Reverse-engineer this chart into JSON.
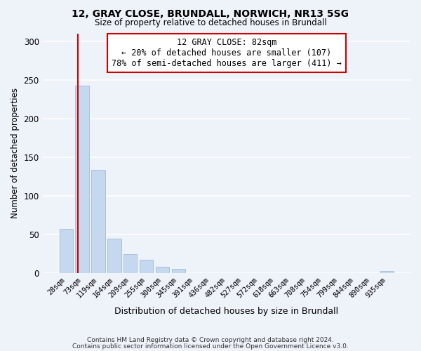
{
  "title": "12, GRAY CLOSE, BRUNDALL, NORWICH, NR13 5SG",
  "subtitle": "Size of property relative to detached houses in Brundall",
  "xlabel": "Distribution of detached houses by size in Brundall",
  "ylabel": "Number of detached properties",
  "bar_labels": [
    "28sqm",
    "73sqm",
    "119sqm",
    "164sqm",
    "209sqm",
    "255sqm",
    "300sqm",
    "345sqm",
    "391sqm",
    "436sqm",
    "482sqm",
    "527sqm",
    "572sqm",
    "618sqm",
    "663sqm",
    "708sqm",
    "754sqm",
    "799sqm",
    "844sqm",
    "890sqm",
    "935sqm"
  ],
  "bar_values": [
    57,
    242,
    133,
    44,
    24,
    17,
    8,
    5,
    0,
    0,
    0,
    0,
    0,
    0,
    0,
    0,
    0,
    0,
    0,
    0,
    2
  ],
  "bar_color": "#c5d8f0",
  "bar_edge_color": "#a0bcd8",
  "marker_line_color": "#cc0000",
  "annotation_line1": "12 GRAY CLOSE: 82sqm",
  "annotation_line2": "← 20% of detached houses are smaller (107)",
  "annotation_line3": "78% of semi-detached houses are larger (411) →",
  "annotation_box_color": "#ffffff",
  "annotation_box_edge": "#cc0000",
  "ylim": [
    0,
    310
  ],
  "yticks": [
    0,
    50,
    100,
    150,
    200,
    250,
    300
  ],
  "footer1": "Contains HM Land Registry data © Crown copyright and database right 2024.",
  "footer2": "Contains public sector information licensed under the Open Government Licence v3.0.",
  "background_color": "#eef2f9",
  "grid_color": "#ffffff"
}
